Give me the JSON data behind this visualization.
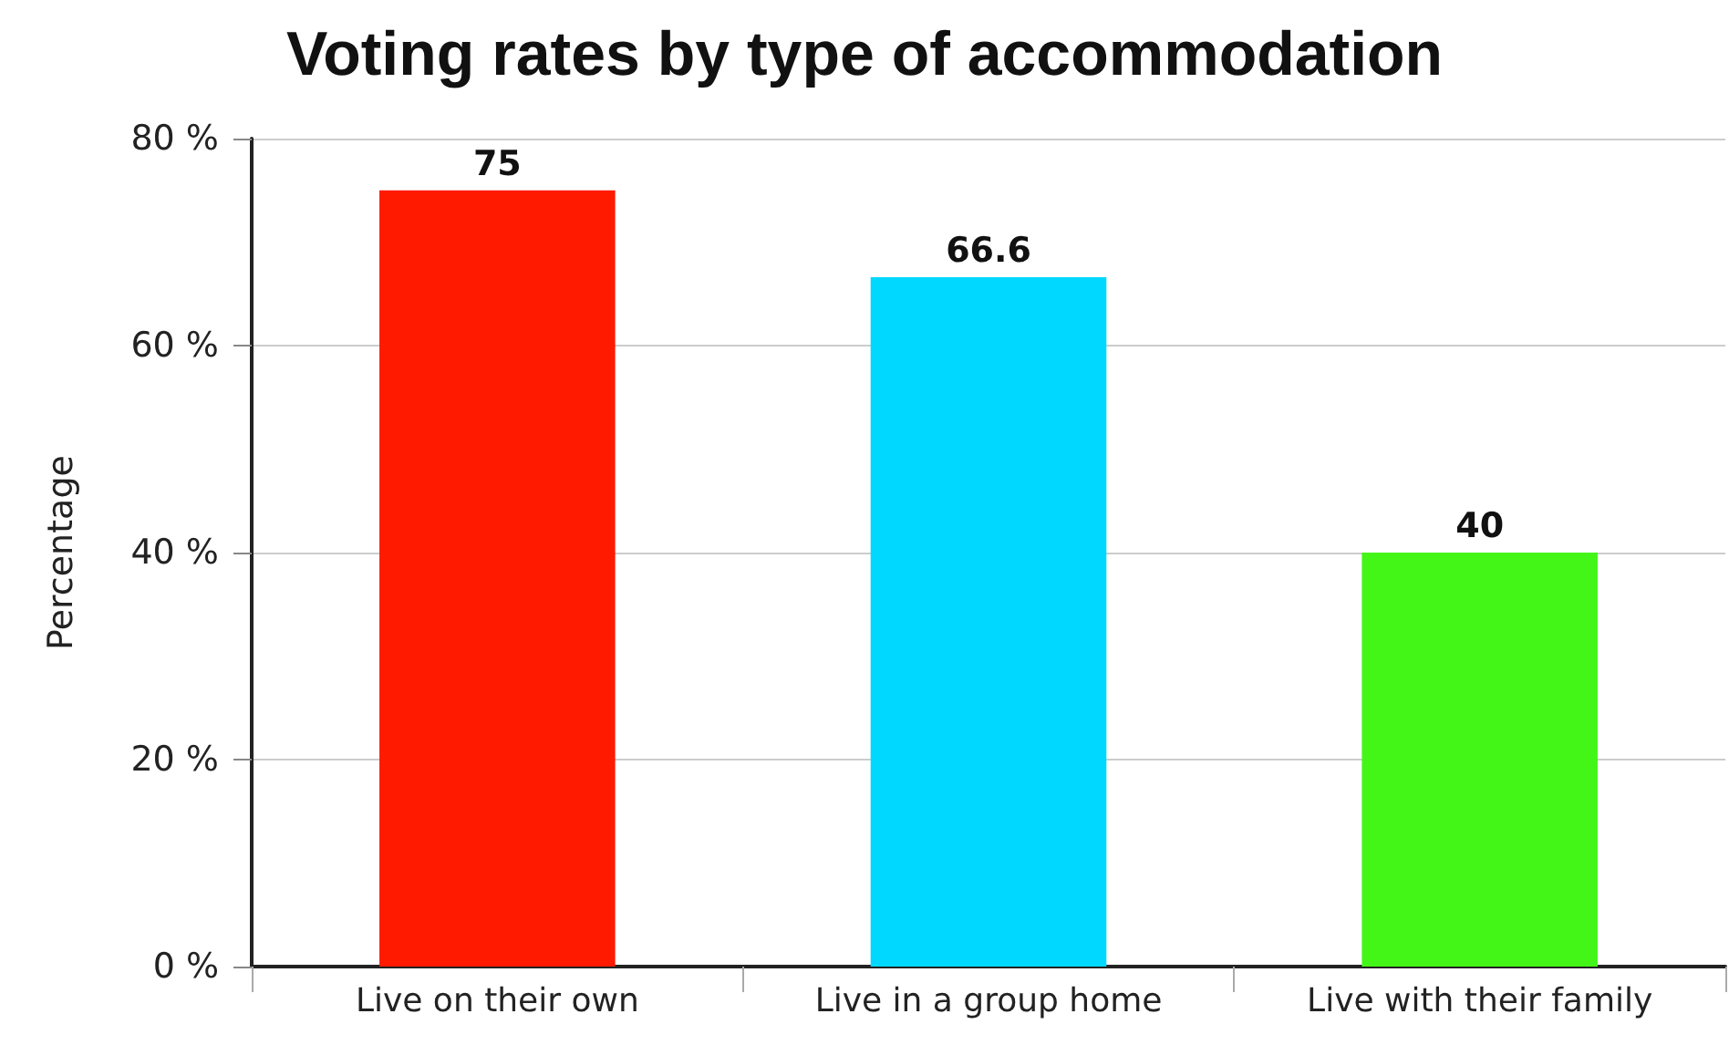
{
  "chart_data": {
    "type": "bar",
    "title": "Voting rates by type of accommodation",
    "ylabel": "Percentage",
    "categories": [
      "Live on their own",
      "Live in a group home",
      "Live with their family"
    ],
    "values": [
      75,
      66.6,
      40
    ],
    "colors": [
      "#ff1a00",
      "#00d8ff",
      "#44f518"
    ],
    "ylim": [
      0,
      80
    ],
    "yticks": [
      {
        "value": 0,
        "label": "0 %"
      },
      {
        "value": 20,
        "label": "20 %"
      },
      {
        "value": 40,
        "label": "40 %"
      },
      {
        "value": 60,
        "label": "60 %"
      },
      {
        "value": 80,
        "label": "80 %"
      }
    ],
    "grid": "y",
    "data_labels": true
  }
}
